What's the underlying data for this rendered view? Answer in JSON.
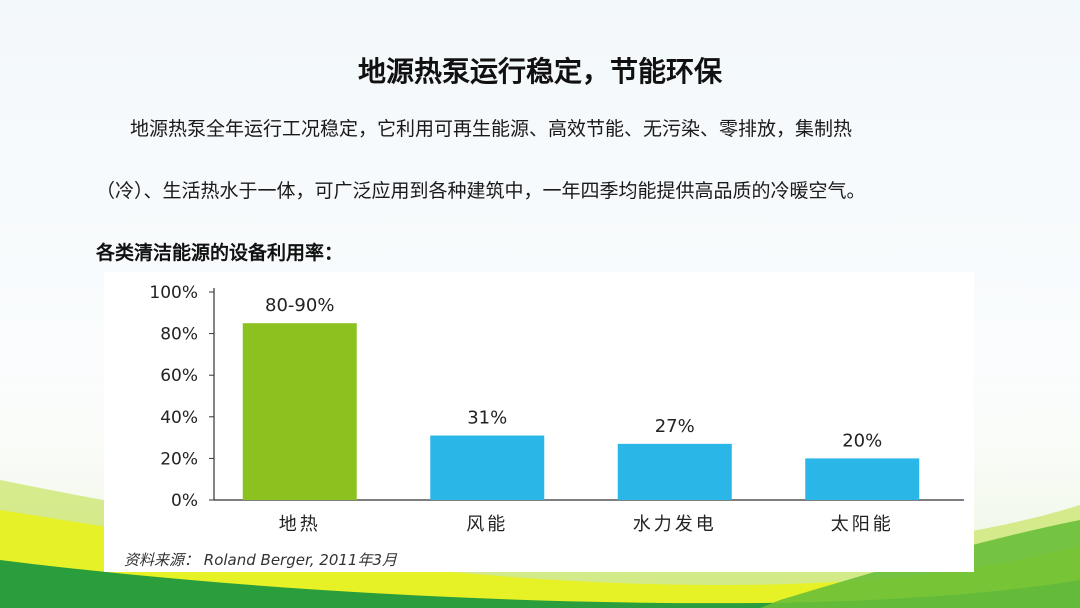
{
  "slide": {
    "title": "地源热泵运行稳定，节能环保",
    "paragraph_line1": "地源热泵全年运行工况稳定，它利用可再生能源、高效节能、无污染、零排放，集制热",
    "paragraph_line2": "（冷）、生活热水于一体，可广泛应用到各种建筑中，一年四季均能提供高品质的冷暖空气。",
    "section_label": "各类清洁能源的设备利用率：",
    "source_note": "资料来源： Roland Berger, 2011年3月"
  },
  "colors": {
    "accent_green": "#8cc21f",
    "bar_blue": "#2ab6e6",
    "bg_green_dark": "#1f9a3a",
    "bg_green_light": "#bfe04a"
  },
  "chart_data": {
    "type": "bar",
    "categories": [
      "地热",
      "风能",
      "水力发电",
      "太阳能"
    ],
    "values": [
      85,
      31,
      27,
      20
    ],
    "data_labels": [
      "80-90%",
      "31%",
      "27%",
      "20%"
    ],
    "bar_colors": [
      "#8cc21f",
      "#2ab6e6",
      "#2ab6e6",
      "#2ab6e6"
    ],
    "y_ticks": [
      "0%",
      "20%",
      "40%",
      "60%",
      "80%",
      "100%"
    ],
    "ylim": [
      0,
      100
    ],
    "grid": false,
    "legend": "none"
  }
}
